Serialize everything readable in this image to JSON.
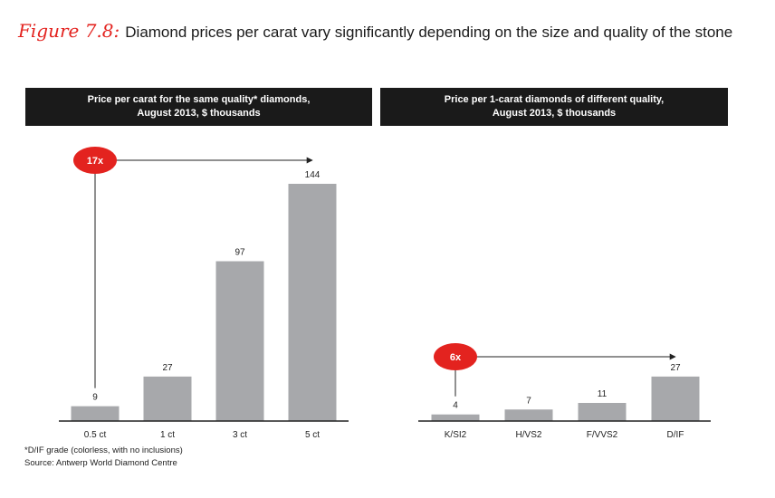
{
  "figure": {
    "label": "Figure 7.8:",
    "caption": "Diamond prices per carat vary significantly depending on the size and quality of the stone"
  },
  "chart_data": [
    {
      "type": "bar",
      "title_line1": "Price per carat for the same quality* diamonds,",
      "title_line2": "August 2013, $ thousands",
      "categories": [
        "0.5 ct",
        "1 ct",
        "3 ct",
        "5 ct"
      ],
      "values": [
        9,
        27,
        97,
        144
      ],
      "data_labels": [
        "9",
        "27",
        "97",
        "144"
      ],
      "ylim": [
        0,
        150
      ],
      "grid": false,
      "annotation": {
        "label": "17x",
        "from_category": 0,
        "to_category": 3,
        "color": "#e3231f"
      }
    },
    {
      "type": "bar",
      "title_line1": "Price per 1-carat diamonds of different quality,",
      "title_line2": "August 2013, $ thousands",
      "categories": [
        "K/SI2",
        "H/VS2",
        "F/VVS2",
        "D/IF"
      ],
      "values": [
        4,
        7,
        11,
        27
      ],
      "data_labels": [
        "4",
        "7",
        "11",
        "27"
      ],
      "ylim": [
        0,
        150
      ],
      "grid": false,
      "annotation": {
        "label": "6x",
        "from_category": 0,
        "to_category": 3,
        "color": "#e3231f"
      }
    }
  ],
  "colors": {
    "bar": "#a7a8ab",
    "axis": "#222222",
    "accent": "#e3231f",
    "header_bg": "#1a1a1a"
  },
  "footnote": "*D/IF grade (colorless, with no inclusions)",
  "source": "Source:  Antwerp World Diamond Centre"
}
